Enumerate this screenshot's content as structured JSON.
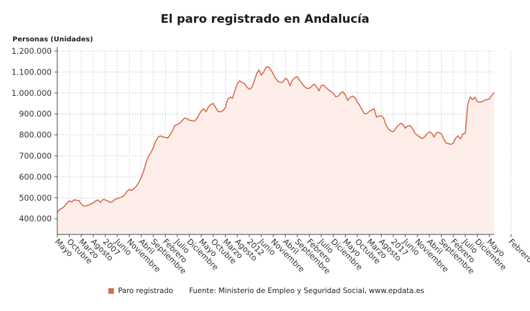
{
  "chart_data": {
    "type": "area",
    "title": "El paro registrado en Andalucía",
    "ylabel": "Personas (Unidades)",
    "ylim": [
      325000,
      1200000
    ],
    "yticks": [
      "400.000",
      "500.000",
      "600.000",
      "700.000",
      "800.000",
      "900.000",
      "1.000.000",
      "1.100.000",
      "1.200.000"
    ],
    "ytick_values": [
      400000,
      500000,
      600000,
      700000,
      800000,
      900000,
      1000000,
      1100000,
      1200000
    ],
    "xticks": [
      {
        "label": "Mayo",
        "month": 0
      },
      {
        "label": "Octubre",
        "month": 5
      },
      {
        "label": "Marzo",
        "month": 10
      },
      {
        "label": "Agosto",
        "month": 15
      },
      {
        "label": "2007",
        "month": 20
      },
      {
        "label": "Junio",
        "month": 25
      },
      {
        "label": "Noviembre",
        "month": 30
      },
      {
        "label": "Abril",
        "month": 35
      },
      {
        "label": "Septiembre",
        "month": 40
      },
      {
        "label": "Febrero",
        "month": 45
      },
      {
        "label": "Julio",
        "month": 50
      },
      {
        "label": "Diciembre",
        "month": 55
      },
      {
        "label": "Mayo",
        "month": 60
      },
      {
        "label": "Octubre",
        "month": 65
      },
      {
        "label": "Marzo",
        "month": 70
      },
      {
        "label": "Agosto",
        "month": 75
      },
      {
        "label": "2012",
        "month": 80
      },
      {
        "label": "Junio",
        "month": 85
      },
      {
        "label": "Noviembre",
        "month": 90
      },
      {
        "label": "Abril",
        "month": 95
      },
      {
        "label": "Septiembre",
        "month": 100
      },
      {
        "label": "Febrero",
        "month": 105
      },
      {
        "label": "Julio",
        "month": 110
      },
      {
        "label": "Diciembre",
        "month": 115
      },
      {
        "label": "Mayo",
        "month": 120
      },
      {
        "label": "Octubre",
        "month": 125
      },
      {
        "label": "Marzo",
        "month": 130
      },
      {
        "label": "Agosto",
        "month": 135
      },
      {
        "label": "2017",
        "month": 140
      },
      {
        "label": "Junio",
        "month": 145
      },
      {
        "label": "Noviembre",
        "month": 150
      },
      {
        "label": "Abril",
        "month": 155
      },
      {
        "label": "Septiembre",
        "month": 160
      },
      {
        "label": "Febrero",
        "month": 165
      },
      {
        "label": "Julio",
        "month": 170
      },
      {
        "label": "Diciembre",
        "month": 175
      },
      {
        "label": "Mayo",
        "month": 180
      },
      {
        "label": "Febrero",
        "month": 189
      }
    ],
    "grid": true,
    "legend_position": "bottom-left",
    "series": [
      {
        "name": "Paro registrado",
        "color": "#d86b4c",
        "values": [
          430000,
          445000,
          450000,
          460000,
          475000,
          485000,
          480000,
          490000,
          488000,
          487000,
          470000,
          460000,
          462000,
          465000,
          470000,
          475000,
          485000,
          490000,
          478000,
          492000,
          490000,
          485000,
          478000,
          482000,
          492000,
          496000,
          500000,
          505000,
          512000,
          530000,
          540000,
          535000,
          545000,
          555000,
          575000,
          598000,
          628000,
          668000,
          698000,
          715000,
          740000,
          770000,
          790000,
          795000,
          790000,
          788000,
          785000,
          800000,
          820000,
          845000,
          850000,
          855000,
          868000,
          880000,
          878000,
          870000,
          868000,
          865000,
          875000,
          895000,
          915000,
          925000,
          910000,
          935000,
          945000,
          950000,
          930000,
          912000,
          910000,
          915000,
          930000,
          970000,
          980000,
          975000,
          1010000,
          1045000,
          1058000,
          1050000,
          1045000,
          1028000,
          1018000,
          1025000,
          1055000,
          1090000,
          1110000,
          1085000,
          1100000,
          1123000,
          1125000,
          1110000,
          1090000,
          1068000,
          1055000,
          1050000,
          1052000,
          1070000,
          1062000,
          1035000,
          1062000,
          1073000,
          1078000,
          1060000,
          1045000,
          1030000,
          1022000,
          1022000,
          1032000,
          1042000,
          1030000,
          1010000,
          1035000,
          1038000,
          1025000,
          1015000,
          1007000,
          998000,
          982000,
          985000,
          998000,
          1006000,
          990000,
          965000,
          978000,
          985000,
          978000,
          958000,
          940000,
          920000,
          900000,
          902000,
          912000,
          918000,
          925000,
          885000,
          890000,
          892000,
          880000,
          845000,
          828000,
          818000,
          815000,
          830000,
          845000,
          855000,
          850000,
          832000,
          842000,
          845000,
          830000,
          808000,
          798000,
          790000,
          783000,
          790000,
          805000,
          815000,
          808000,
          790000,
          810000,
          812000,
          805000,
          780000,
          762000,
          758000,
          755000,
          760000,
          785000,
          795000,
          780000,
          805000,
          808000,
          945000,
          980000,
          968000,
          980000,
          958000,
          956000,
          958000,
          966000,
          968000,
          972000,
          988000,
          1003000
        ]
      }
    ],
    "legend": [
      {
        "label": "Paro registrado",
        "color": "#d86b4c"
      }
    ],
    "source": "Fuente: Ministerio de Empleo y Seguridad Social, www.epdata.es"
  }
}
